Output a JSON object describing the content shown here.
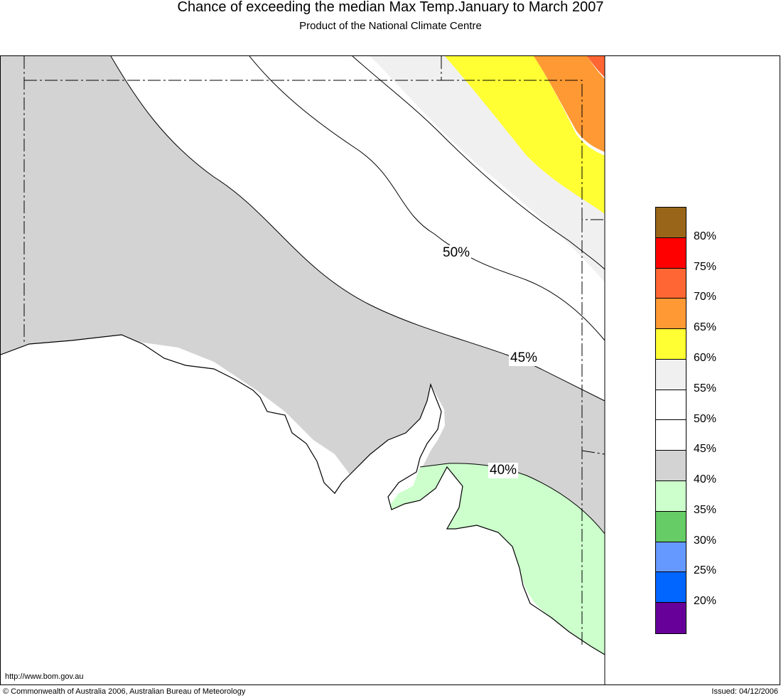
{
  "header": {
    "title": "Chance of exceeding the median Max Temp.January to March 2007",
    "subtitle": "Product of the National Climate Centre"
  },
  "map": {
    "contour_labels": [
      "50%",
      "45%",
      "40%"
    ],
    "colors": {
      "below_40": "#d3d3d3",
      "35_40": "#ccffcc",
      "45_55": "#ffffff",
      "55_60": "#f0f0f0",
      "60_65": "#ffff33",
      "65_70": "#ff9933",
      "70_75": "#ff6633",
      "land_outline": "#000000"
    }
  },
  "legend": {
    "bands": [
      {
        "color": "#996619"
      },
      {
        "color": "#ff0000"
      },
      {
        "color": "#ff6633"
      },
      {
        "color": "#ff9933"
      },
      {
        "color": "#ffff33"
      },
      {
        "color": "#f0f0f0"
      },
      {
        "color": "#ffffff"
      },
      {
        "color": "#ffffff"
      },
      {
        "color": "#d3d3d3"
      },
      {
        "color": "#ccffcc"
      },
      {
        "color": "#66cc66"
      },
      {
        "color": "#6699ff"
      },
      {
        "color": "#0066ff"
      },
      {
        "color": "#660099"
      }
    ],
    "labels": [
      "80%",
      "75%",
      "70%",
      "65%",
      "60%",
      "55%",
      "50%",
      "45%",
      "40%",
      "35%",
      "30%",
      "25%",
      "20%"
    ]
  },
  "footer": {
    "url": "http://www.bom.gov.au",
    "copyright": "© Commonwealth of Australia 2006, Australian Bureau of Meteorology",
    "issued": "Issued: 04/12/2006"
  }
}
